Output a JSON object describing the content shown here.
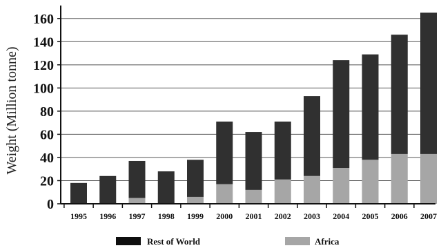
{
  "chart_data": {
    "type": "bar",
    "stacked": true,
    "title": "",
    "xlabel": "",
    "ylabel": "Weight (Million tonne)",
    "ylim": [
      0,
      170
    ],
    "yticks": [
      0,
      20,
      40,
      60,
      80,
      100,
      120,
      140,
      160
    ],
    "grid": true,
    "legend_position": "bottom",
    "categories": [
      "1995",
      "1996",
      "1997",
      "1998",
      "1999",
      "2000",
      "2001",
      "2002",
      "2003",
      "2004",
      "2005",
      "2006",
      "2007"
    ],
    "series": [
      {
        "name": "Africa",
        "color": "#a6a6a6",
        "values": [
          0,
          0,
          5,
          0,
          6,
          17,
          12,
          21,
          24,
          31,
          38,
          43,
          43
        ]
      },
      {
        "name": "Rest of World",
        "color": "#303030",
        "values": [
          18,
          24,
          32,
          28,
          32,
          54,
          50,
          50,
          69,
          93,
          91,
          103,
          122
        ]
      }
    ],
    "legend": [
      {
        "name": "Rest of World",
        "color": "#0f0f0f"
      },
      {
        "name": "Africa",
        "color": "#a6a6a6"
      }
    ]
  }
}
